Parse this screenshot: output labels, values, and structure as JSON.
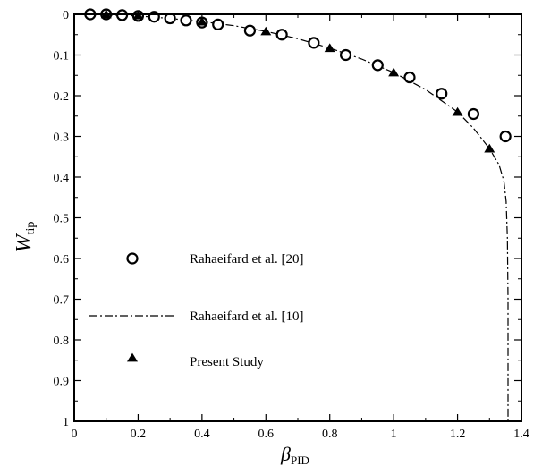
{
  "chart_data": {
    "type": "scatter",
    "xlabel": {
      "symbol": "β",
      "subscript": "PID"
    },
    "ylabel": {
      "symbol": "W",
      "subscript": "tip"
    },
    "xlim": [
      0,
      1.4
    ],
    "ylim": [
      0,
      1
    ],
    "y_inverted": true,
    "xticks": [
      "0",
      "0.2",
      "0.4",
      "0.6",
      "0.8",
      "1",
      "1.2",
      "1.4"
    ],
    "yticks": [
      "0",
      "0.1",
      "0.2",
      "0.3",
      "0.4",
      "0.5",
      "0.6",
      "0.7",
      "0.8",
      "0.9",
      "1"
    ],
    "grid": false,
    "legend_position": "lower-left",
    "series": [
      {
        "name": "Rahaeifard et al. [20]",
        "style": "open-circle",
        "x": [
          0.05,
          0.1,
          0.15,
          0.2,
          0.25,
          0.3,
          0.35,
          0.4,
          0.45,
          0.55,
          0.65,
          0.75,
          0.85,
          0.95,
          1.05,
          1.15,
          1.25,
          1.35
        ],
        "y": [
          0.0,
          0.0,
          0.002,
          0.004,
          0.006,
          0.01,
          0.015,
          0.02,
          0.025,
          0.04,
          0.05,
          0.07,
          0.1,
          0.125,
          0.155,
          0.195,
          0.245,
          0.3
        ]
      },
      {
        "name": "Rahaeifard et al. [10]",
        "style": "dash-dot-line",
        "x": [
          0.0,
          0.1,
          0.2,
          0.3,
          0.4,
          0.5,
          0.6,
          0.7,
          0.8,
          0.9,
          1.0,
          1.1,
          1.2,
          1.25,
          1.3,
          1.33,
          1.345,
          1.352,
          1.356,
          1.358,
          1.358
        ],
        "y": [
          0.0,
          0.001,
          0.004,
          0.01,
          0.018,
          0.028,
          0.042,
          0.06,
          0.083,
          0.11,
          0.143,
          0.185,
          0.24,
          0.28,
          0.33,
          0.37,
          0.41,
          0.46,
          0.55,
          0.7,
          1.0
        ]
      },
      {
        "name": "Present Study",
        "style": "filled-triangle",
        "x": [
          0.1,
          0.2,
          0.4,
          0.6,
          0.8,
          1.0,
          1.2,
          1.3
        ],
        "y": [
          0.0,
          0.003,
          0.018,
          0.042,
          0.083,
          0.143,
          0.24,
          0.33
        ]
      }
    ]
  }
}
